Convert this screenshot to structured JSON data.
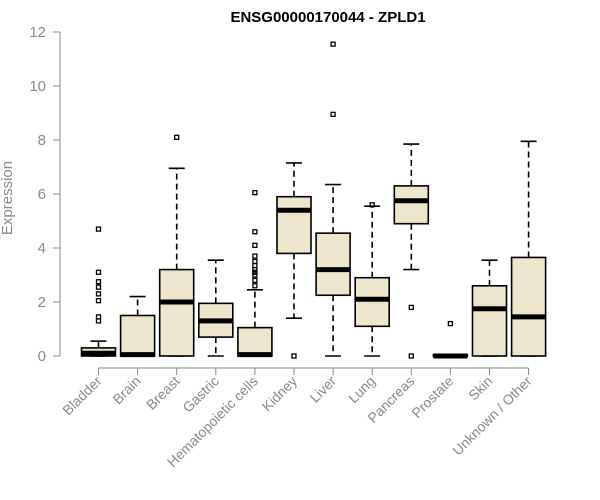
{
  "chart_data": {
    "type": "boxplot",
    "title": "ENSG00000170044 - ZPLD1",
    "ylabel": "Expression",
    "xlabel": "",
    "ylim": [
      0,
      12
    ],
    "yticks": [
      0,
      2,
      4,
      6,
      8,
      10,
      12
    ],
    "grid": false,
    "box_fill": "#ede6cd",
    "line_color": "#000000",
    "categories": [
      "Bladder",
      "Brain",
      "Breast",
      "Gastric",
      "Hematopoietic cells",
      "Kidney",
      "Liver",
      "Lung",
      "Pancreas",
      "Prostate",
      "Skin",
      "Unknown / Other"
    ],
    "boxes": [
      {
        "category": "Bladder",
        "whisker_low": 0,
        "q1": 0,
        "median": 0.1,
        "q3": 0.3,
        "whisker_high": 0.55,
        "outliers": [
          1.3,
          1.45,
          2.05,
          2.3,
          2.55,
          2.75,
          3.1,
          4.7
        ]
      },
      {
        "category": "Brain",
        "whisker_low": 0,
        "q1": 0,
        "median": 0.05,
        "q3": 1.5,
        "whisker_high": 2.2,
        "outliers": []
      },
      {
        "category": "Breast",
        "whisker_low": 0,
        "q1": 0,
        "median": 2.0,
        "q3": 3.2,
        "whisker_high": 6.95,
        "outliers": [
          8.1
        ]
      },
      {
        "category": "Gastric",
        "whisker_low": 0,
        "q1": 0.7,
        "median": 1.3,
        "q3": 1.95,
        "whisker_high": 3.55,
        "outliers": []
      },
      {
        "category": "Hematopoietic cells",
        "whisker_low": 0,
        "q1": 0,
        "median": 0.05,
        "q3": 1.05,
        "whisker_high": 2.45,
        "outliers": [
          2.6,
          2.8,
          3.0,
          3.1,
          3.2,
          3.35,
          3.5,
          3.7,
          4.1,
          4.6,
          6.05
        ]
      },
      {
        "category": "Kidney",
        "whisker_low": 1.4,
        "q1": 3.8,
        "median": 5.4,
        "q3": 5.9,
        "whisker_high": 7.15,
        "outliers": [
          0
        ]
      },
      {
        "category": "Liver",
        "whisker_low": 0,
        "q1": 2.25,
        "median": 3.2,
        "q3": 4.55,
        "whisker_high": 6.35,
        "outliers": [
          8.95,
          11.55
        ]
      },
      {
        "category": "Lung",
        "whisker_low": 0,
        "q1": 1.1,
        "median": 2.1,
        "q3": 2.9,
        "whisker_high": 5.55,
        "outliers": [
          5.6
        ]
      },
      {
        "category": "Pancreas",
        "whisker_low": 3.2,
        "q1": 4.9,
        "median": 5.75,
        "q3": 6.3,
        "whisker_high": 7.85,
        "outliers": [
          1.8,
          0
        ]
      },
      {
        "category": "Prostate",
        "whisker_low": 0,
        "q1": 0,
        "median": 0,
        "q3": 0.05,
        "whisker_high": 0.05,
        "outliers": [
          1.2
        ]
      },
      {
        "category": "Skin",
        "whisker_low": 0,
        "q1": 0,
        "median": 1.75,
        "q3": 2.6,
        "whisker_high": 3.55,
        "outliers": []
      },
      {
        "category": "Unknown / Other",
        "whisker_low": 0,
        "q1": 0,
        "median": 1.45,
        "q3": 3.65,
        "whisker_high": 7.95,
        "outliers": []
      }
    ]
  }
}
